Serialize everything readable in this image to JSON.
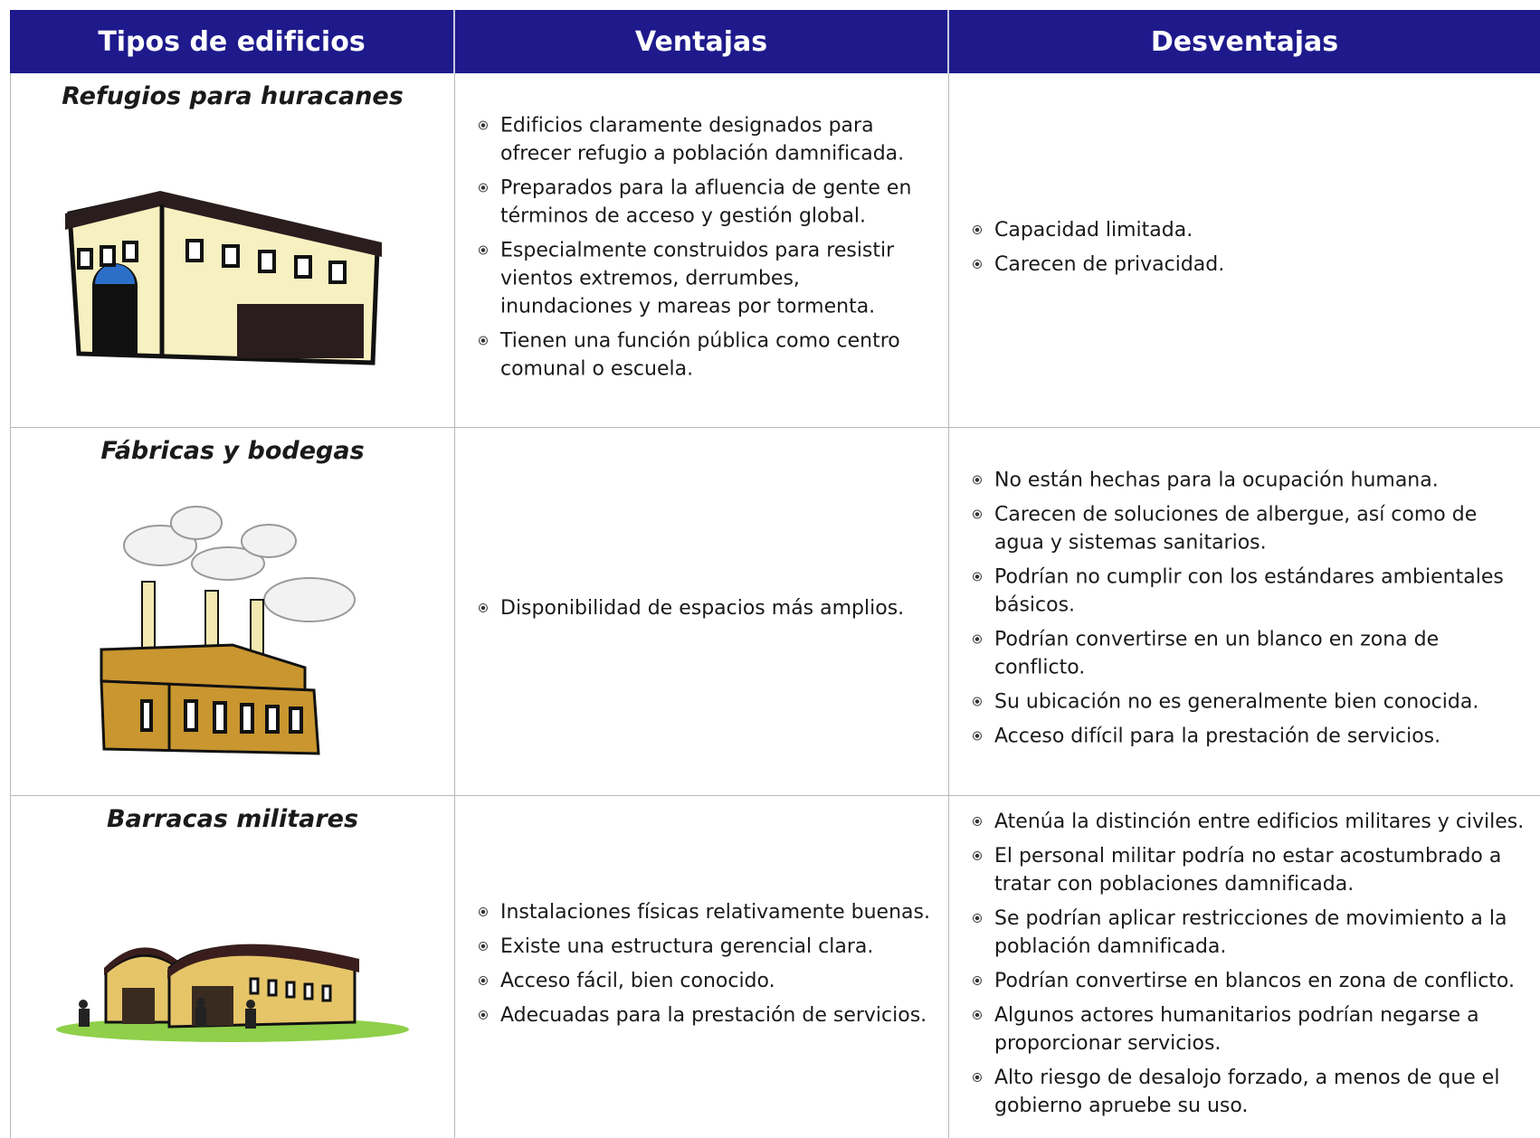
{
  "table": {
    "header": [
      "Tipos de edificios",
      "Ventajas",
      "Desventajas"
    ],
    "rows": [
      {
        "title": "Refugios para huracanes",
        "ventajas": [
          "Edificios claramente designados para ofrecer refugio a población damnificada.",
          "Preparados para la afluencia de gente en términos de acceso y gestión global.",
          "Especialmente construidos para resistir vientos extremos, derrumbes, inundaciones y mareas por tormenta.",
          "Tienen una función pública como centro comunal o escuela."
        ],
        "desventajas": [
          "Capacidad limitada.",
          "Carecen de privacidad."
        ]
      },
      {
        "title": "Fábricas y bodegas",
        "ventajas": [
          "Disponibilidad de espacios más amplios."
        ],
        "desventajas": [
          "No están hechas para la ocupación humana.",
          "Carecen de soluciones de albergue, así como de agua y sistemas sanitarios.",
          "Podrían no cumplir con los estándares ambientales básicos.",
          "Podrían convertirse en un blanco en zona de conflicto.",
          "Su ubicación no es generalmente bien conocida.",
          "Acceso difícil para la prestación de servicios."
        ]
      },
      {
        "title": "Barracas militares",
        "ventajas": [
          "Instalaciones físicas relativamente buenas.",
          "Existe una estructura gerencial clara.",
          "Acceso fácil, bien conocido.",
          "Adecuadas para la prestación de servicios."
        ],
        "desventajas": [
          "Atenúa la distinción entre edificios militares y civiles.",
          "El personal militar podría no estar acostumbrado a tratar con poblaciones damnificada.",
          "Se podrían aplicar restricciones de movimiento a la población damnificada.",
          "Podrían convertirse en blancos en zona de conflicto.",
          "Algunos actores humanitarios podrían negarse a proporcionar servicios.",
          "Alto riesgo de desalojo forzado, a menos de que el gobierno apruebe su uso."
        ]
      }
    ]
  }
}
